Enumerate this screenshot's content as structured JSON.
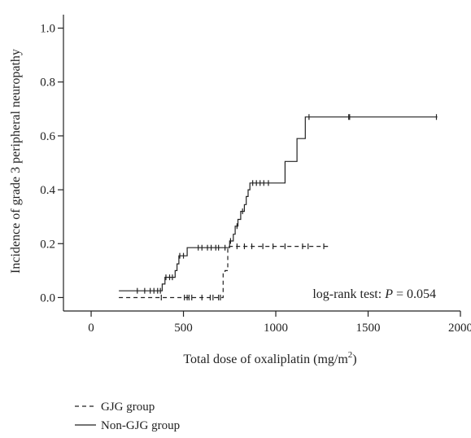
{
  "chart_data": {
    "type": "line",
    "subtype": "kaplan-meier-step",
    "xlabel": "Total dose of oxaliplatin (mg/m",
    "xlabel_sup": "2",
    "xlabel_end": ")",
    "ylabel": "Incidence of grade 3 peripheral neuropathy",
    "xlim": [
      -150,
      2000
    ],
    "ylim": [
      -0.05,
      1.05
    ],
    "xticks": [
      0,
      500,
      1000,
      1500,
      2000
    ],
    "xtick_labels": [
      "0",
      "500",
      "1000",
      "1500",
      "2000"
    ],
    "yticks": [
      0.0,
      0.2,
      0.4,
      0.6,
      0.8,
      1.0
    ],
    "ytick_labels": [
      "0.0",
      "0.2",
      "0.4",
      "0.6",
      "0.8",
      "1.0"
    ],
    "annotation": {
      "prefix": "log-rank test: ",
      "p_symbol": "P",
      "suffix": " = 0.054"
    },
    "legend_position": "bottom-left",
    "series": [
      {
        "name": "GJG group",
        "line_style": "dashed",
        "color": "#222222",
        "steps": [
          [
            150,
            0.0
          ],
          [
            700,
            0.0
          ],
          [
            715,
            0.09
          ],
          [
            725,
            0.1
          ],
          [
            740,
            0.19
          ],
          [
            1290,
            0.19
          ]
        ],
        "censors": [
          [
            380,
            0.0
          ],
          [
            505,
            0.0
          ],
          [
            520,
            0.0
          ],
          [
            530,
            0.0
          ],
          [
            545,
            0.0
          ],
          [
            600,
            0.0
          ],
          [
            645,
            0.0
          ],
          [
            660,
            0.0
          ],
          [
            690,
            0.0
          ],
          [
            700,
            0.0
          ],
          [
            790,
            0.19
          ],
          [
            830,
            0.19
          ],
          [
            870,
            0.19
          ],
          [
            930,
            0.19
          ],
          [
            985,
            0.19
          ],
          [
            1050,
            0.19
          ],
          [
            1145,
            0.19
          ],
          [
            1175,
            0.19
          ],
          [
            1260,
            0.19
          ]
        ]
      },
      {
        "name": "Non-GJG group",
        "line_style": "solid",
        "color": "#222222",
        "steps": [
          [
            150,
            0.025
          ],
          [
            380,
            0.025
          ],
          [
            385,
            0.05
          ],
          [
            400,
            0.075
          ],
          [
            455,
            0.1
          ],
          [
            465,
            0.125
          ],
          [
            475,
            0.155
          ],
          [
            520,
            0.185
          ],
          [
            740,
            0.185
          ],
          [
            750,
            0.21
          ],
          [
            770,
            0.235
          ],
          [
            780,
            0.265
          ],
          [
            795,
            0.29
          ],
          [
            810,
            0.32
          ],
          [
            830,
            0.345
          ],
          [
            840,
            0.375
          ],
          [
            850,
            0.4
          ],
          [
            860,
            0.425
          ],
          [
            1045,
            0.425
          ],
          [
            1050,
            0.505
          ],
          [
            1110,
            0.505
          ],
          [
            1115,
            0.59
          ],
          [
            1150,
            0.59
          ],
          [
            1160,
            0.67
          ],
          [
            1875,
            0.67
          ]
        ],
        "censors": [
          [
            250,
            0.025
          ],
          [
            290,
            0.025
          ],
          [
            320,
            0.025
          ],
          [
            340,
            0.025
          ],
          [
            360,
            0.025
          ],
          [
            375,
            0.025
          ],
          [
            405,
            0.075
          ],
          [
            425,
            0.075
          ],
          [
            440,
            0.075
          ],
          [
            480,
            0.155
          ],
          [
            500,
            0.155
          ],
          [
            580,
            0.185
          ],
          [
            600,
            0.185
          ],
          [
            630,
            0.185
          ],
          [
            650,
            0.185
          ],
          [
            675,
            0.185
          ],
          [
            690,
            0.185
          ],
          [
            725,
            0.185
          ],
          [
            755,
            0.21
          ],
          [
            790,
            0.265
          ],
          [
            820,
            0.32
          ],
          [
            875,
            0.425
          ],
          [
            895,
            0.425
          ],
          [
            915,
            0.425
          ],
          [
            935,
            0.425
          ],
          [
            960,
            0.425
          ],
          [
            1180,
            0.67
          ],
          [
            1395,
            0.67
          ],
          [
            1400,
            0.67
          ],
          [
            1870,
            0.67
          ]
        ]
      }
    ]
  }
}
